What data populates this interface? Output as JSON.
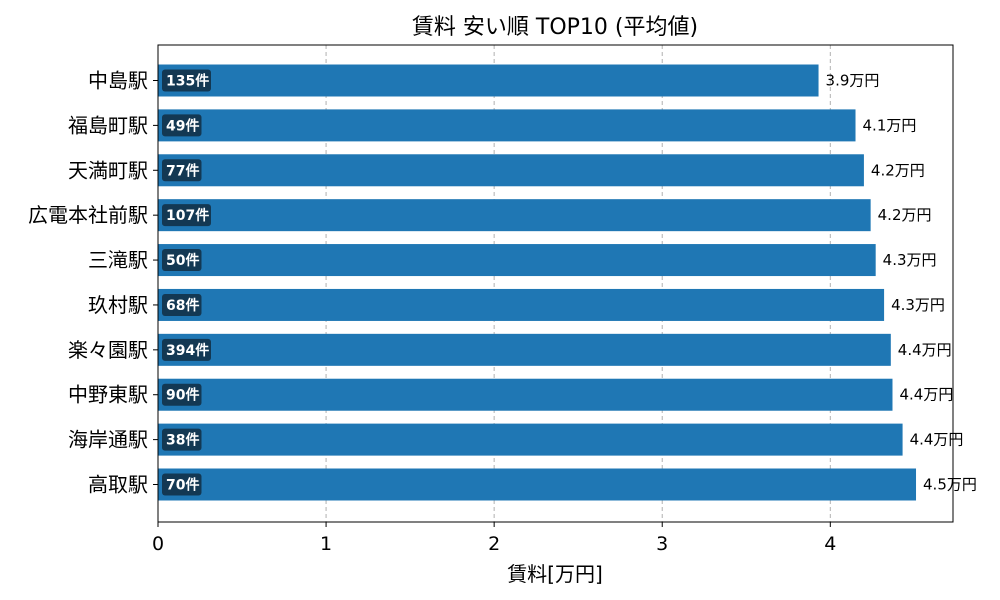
{
  "chart_data": {
    "type": "bar",
    "orientation": "horizontal",
    "title": "賃料 安い順 TOP10 (平均値)",
    "xlabel": "賃料[万円]",
    "ylabel": "",
    "xlim": [
      0,
      4.73
    ],
    "xticks": [
      "0",
      "1",
      "2",
      "3",
      "4"
    ],
    "grid": "x-dashed",
    "bar_color": "#1f77b4",
    "count_badge_color": "#133853",
    "categories": [
      "中島駅",
      "福島町駅",
      "天満町駅",
      "広電本社前駅",
      "三滝駅",
      "玖村駅",
      "楽々園駅",
      "中野東駅",
      "海岸通駅",
      "高取駅"
    ],
    "values": [
      3.93,
      4.15,
      4.2,
      4.24,
      4.27,
      4.32,
      4.36,
      4.37,
      4.43,
      4.51
    ],
    "value_labels": [
      "3.9万円",
      "4.1万円",
      "4.2万円",
      "4.2万円",
      "4.3万円",
      "4.3万円",
      "4.4万円",
      "4.4万円",
      "4.4万円",
      "4.5万円"
    ],
    "counts": [
      "135件",
      "49件",
      "77件",
      "107件",
      "50件",
      "68件",
      "394件",
      "90件",
      "38件",
      "70件"
    ]
  }
}
